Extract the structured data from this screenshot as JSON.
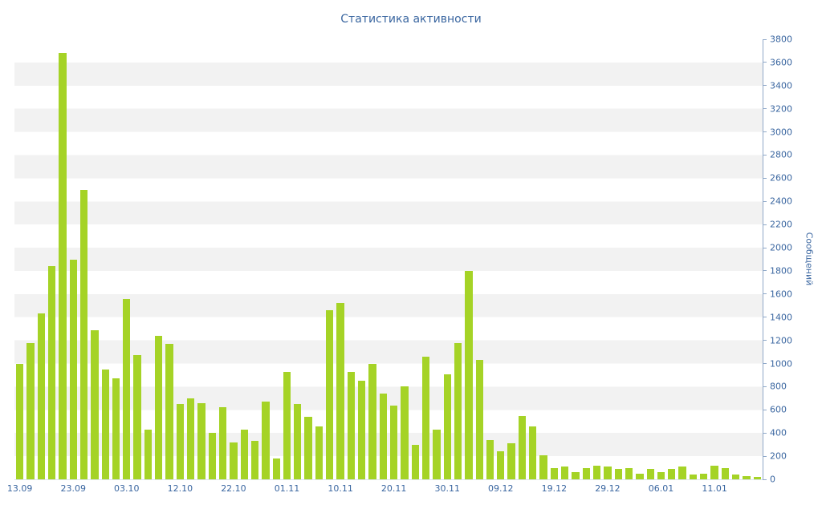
{
  "page": {
    "title": "Статистика активности"
  },
  "chart_data": {
    "type": "bar",
    "title": "Статистика активности",
    "xlabel": "",
    "ylabel": "Сообщений",
    "ylim": [
      0,
      3800
    ],
    "y_tick_step": 200,
    "grid": "striped-horizontal-bands",
    "legend": "none",
    "x_tick_every": 5,
    "x_tick_labels": [
      "13.09",
      "23.09",
      "03.10",
      "12.10",
      "22.10",
      "01.11",
      "10.11",
      "20.11",
      "30.11",
      "09.12",
      "19.12",
      "29.12",
      "06.01",
      "11.01"
    ],
    "values": [
      1000,
      1180,
      1430,
      1840,
      3680,
      1900,
      2500,
      1290,
      950,
      870,
      1560,
      1070,
      430,
      1240,
      1170,
      650,
      700,
      660,
      400,
      620,
      320,
      430,
      330,
      670,
      180,
      930,
      650,
      540,
      460,
      1460,
      1520,
      930,
      850,
      1000,
      740,
      640,
      800,
      300,
      1060,
      430,
      910,
      1180,
      1800,
      1030,
      340,
      240,
      310,
      550,
      460,
      210,
      100,
      110,
      60,
      100,
      120,
      110,
      90,
      100,
      50,
      90,
      60,
      90,
      110,
      40,
      50,
      120,
      100,
      40,
      30,
      20
    ],
    "colors": {
      "bar": "#a5d326",
      "text": "#3a66a0",
      "axis": "#8fa8c8",
      "stripe": "#f2f2f2",
      "background": "#ffffff"
    }
  }
}
